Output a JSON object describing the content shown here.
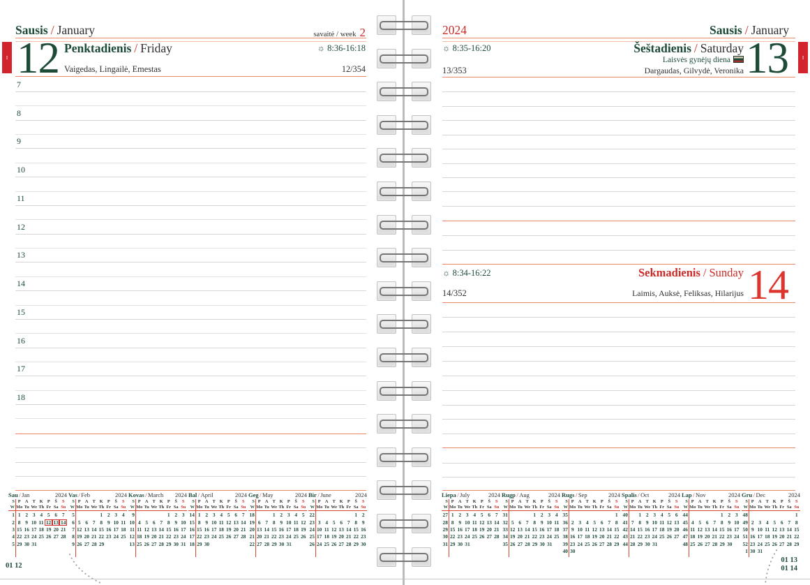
{
  "colors": {
    "green": "#1d4b38",
    "red": "#cc2b28",
    "tab_red": "#d2242c",
    "text_dark": "#2e2e2e",
    "line_red": "#ee8668",
    "line_red_light": "#f6bcab",
    "line_gray": "#d6d6d6",
    "line_light": "#e2e2e2",
    "cal_red": "#d9452f"
  },
  "left_page": {
    "month_lt": "Sausis",
    "slash": "/",
    "month_en": "January",
    "week_label": "savaitė / week",
    "week_number": "2",
    "day_number": "12",
    "day_name_lt": "Penktadienis",
    "day_name_en": "Friday",
    "sun_icon": "☼",
    "sun_times": "8:36-16:18",
    "name_days": "Vaigedas, Lingailė, Emestas",
    "day_of_year": "12/354",
    "hours": [
      "7",
      "8",
      "9",
      "10",
      "11",
      "12",
      "13",
      "14",
      "15",
      "16",
      "17",
      "18"
    ],
    "footer_code": "01 12",
    "tab_label": "I"
  },
  "right_page": {
    "year": "2024",
    "month_lt": "Sausis",
    "slash": "/",
    "month_en": "January",
    "saturday": {
      "day_number": "13",
      "day_name_lt": "Šeštadienis",
      "day_name_en": "Saturday",
      "holiday": "Laisvės gynėjų diena",
      "sun_icon": "☼",
      "sun_times": "8:35-16:20",
      "day_of_year": "13/353",
      "name_days": "Dargaudas, Gilvydė, Veronika"
    },
    "sunday": {
      "day_number": "14",
      "day_name_lt": "Sekmadienis",
      "day_name_en": "Sunday",
      "sun_icon": "☼",
      "sun_times": "8:34-16:22",
      "day_of_year": "14/352",
      "name_days": "Laimis, Auksė, Feliksas, Hilarijus"
    },
    "footer_codes": [
      "01 13",
      "01 14"
    ],
    "tab_label": "I"
  },
  "mini_calendars": {
    "year": "2024",
    "slash": "/",
    "header_row_lt": [
      "S",
      "P",
      "A",
      "T",
      "K",
      "P",
      "Š",
      "S"
    ],
    "header_row_en": [
      "W",
      "Mo",
      "Tu",
      "We",
      "Th",
      "Fr",
      "Sa",
      "Su"
    ],
    "left": [
      {
        "lt": "Sau",
        "en": "Jan",
        "weeks": [
          [
            "1",
            "1r 2 3 4 5 6r 7r"
          ],
          [
            "2",
            "8 9 10 11 12b 13rb 14rb"
          ],
          [
            "3",
            "15 16 17 18 19 20r 21r"
          ],
          [
            "4",
            "22 23 24 25 26 27r 28r"
          ],
          [
            "5",
            "29 30 31"
          ]
        ]
      },
      {
        "lt": "Vas",
        "en": "Feb",
        "weeks": [
          [
            "5",
            "_ _ _ 1 2 3r 4r"
          ],
          [
            "6",
            "5 6 7 8 9 10r 11r"
          ],
          [
            "7",
            "12 13 14 15 16r 17r 18r"
          ],
          [
            "8",
            "19 20 21 22 23 24r 25r"
          ],
          [
            "9",
            "26 27 28 29"
          ]
        ]
      },
      {
        "lt": "Kovas",
        "en": "March",
        "weeks": [
          [
            "9",
            "_ _ _ _ 1 2r 3r"
          ],
          [
            "10",
            "4 5 6 7 8 9r 10r"
          ],
          [
            "11",
            "11r 12 13 14 15 16r 17r"
          ],
          [
            "12",
            "18 19 20 21 22 23r 24r"
          ],
          [
            "13",
            "25 26 27 28 29 30r 31r"
          ]
        ]
      },
      {
        "lt": "Bal",
        "en": "April",
        "weeks": [
          [
            "14",
            "1r 2 3 4 5 6r 7r"
          ],
          [
            "15",
            "8 9 10 11 12 13r 14r"
          ],
          [
            "16",
            "15 16 17 18 19 20r 21r"
          ],
          [
            "17",
            "22 23 24 25 26 27r 28r"
          ],
          [
            "18",
            "29 30"
          ]
        ]
      },
      {
        "lt": "Geg",
        "en": "May",
        "weeks": [
          [
            "18",
            "_ _ 1r 2 3 4r 5r"
          ],
          [
            "19",
            "6 7 8 9 10 11r 12r"
          ],
          [
            "20",
            "13 14 15 16 17 18r 19r"
          ],
          [
            "21",
            "20 21 22 23 24 25r 26r"
          ],
          [
            "22",
            "27 28 29 30 31"
          ]
        ]
      },
      {
        "lt": "Bir",
        "en": "June",
        "weeks": [
          [
            "22",
            "_ _ _ _ _ 1r 2r"
          ],
          [
            "23",
            "3 4 5 6 7 8r 9r"
          ],
          [
            "24",
            "10 11 12 13 14 15r 16r"
          ],
          [
            "25",
            "17 18 19 20 21 22r 23r"
          ],
          [
            "26",
            "24r 25 26 27 28 29r 30r"
          ]
        ]
      }
    ],
    "right": [
      {
        "lt": "Liepa",
        "en": "July",
        "weeks": [
          [
            "27",
            "1 2 3 4 5 6r 7r"
          ],
          [
            "28",
            "8 9 10 11 12 13r 14r"
          ],
          [
            "29",
            "15 16 17 18 19 20r 21r"
          ],
          [
            "30",
            "22 23 24 25 26 27r 28r"
          ],
          [
            "31",
            "29 30 31"
          ]
        ]
      },
      {
        "lt": "Rugp",
        "en": "Aug",
        "weeks": [
          [
            "31",
            "_ _ _ 1 2 3r 4r"
          ],
          [
            "32",
            "5 6 7 8 9 10r 11r"
          ],
          [
            "33",
            "12 13 14 15r 16 17r 18r"
          ],
          [
            "34",
            "19 20 21 22 23 24r 25r"
          ],
          [
            "35",
            "26 27 28 29 30 31"
          ]
        ]
      },
      {
        "lt": "Rugs",
        "en": "Sep",
        "weeks": [
          [
            "35",
            "_ _ _ _ _ _ 1r"
          ],
          [
            "36",
            "2 3 4 5 6 7r 8r"
          ],
          [
            "37",
            "9 10 11 12 13 14r 15r"
          ],
          [
            "38",
            "16 17 18 19 20 21r 22r"
          ],
          [
            "39",
            "23 24 25 26 27 28r 29r"
          ],
          [
            "40",
            "30"
          ]
        ]
      },
      {
        "lt": "Spalis",
        "en": "Oct",
        "weeks": [
          [
            "40",
            "_ 1 2 3 4 5r 6r"
          ],
          [
            "41",
            "7 8 9 10 11 12r 13r"
          ],
          [
            "42",
            "14 15 16 17 18 19r 20r"
          ],
          [
            "43",
            "21 22 23 24 25 26r 27r"
          ],
          [
            "44",
            "28 29 30 31"
          ]
        ]
      },
      {
        "lt": "Lap",
        "en": "Nov",
        "weeks": [
          [
            "44",
            "_ _ _ _ 1r 2r 3r"
          ],
          [
            "45",
            "4 5 6 7 8 9r 10r"
          ],
          [
            "46",
            "11 12 13 14 15 16r 17r"
          ],
          [
            "47",
            "18 19 20 21 22 23r 24r"
          ],
          [
            "48",
            "25 26 27 28 29 30"
          ]
        ]
      },
      {
        "lt": "Gru",
        "en": "Dec",
        "weeks": [
          [
            "48",
            "_ _ _ _ _ _ 1r"
          ],
          [
            "49",
            "2 3 4 5 6 7r 8r"
          ],
          [
            "50",
            "9 10 11 12 13 14r 15r"
          ],
          [
            "51",
            "16 17 18 19 20 21r 22r"
          ],
          [
            "52",
            "23 24r 25r 26r 27 28r 29r"
          ],
          [
            "1",
            "30 31"
          ]
        ]
      }
    ]
  }
}
